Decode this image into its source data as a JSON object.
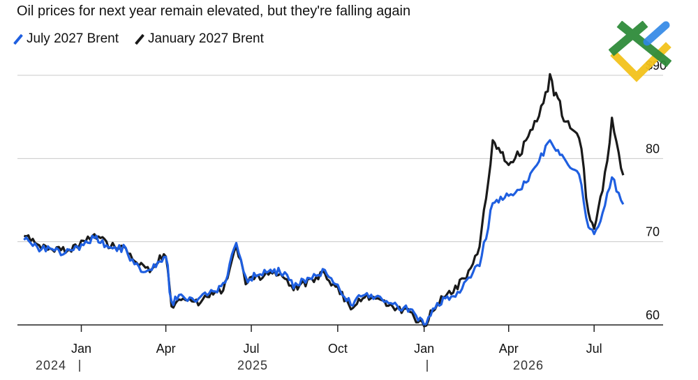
{
  "title": "Oil prices for next year remain elevated, but they're falling again",
  "legend": [
    {
      "label": "July 2027 Brent",
      "color": "#1f5fe0"
    },
    {
      "label": "January 2027 Brent",
      "color": "#1a1a1a"
    }
  ],
  "logo_icon": "watermark-logo-icon",
  "colors": {
    "grid": "#c8c8c8",
    "axis": "#222222",
    "logo_green": "#2e8b3a",
    "logo_blue": "#2f86e6",
    "logo_yellow": "#f2c21b"
  },
  "chart_data": {
    "type": "line",
    "title": "Oil prices for next year remain elevated, but they're falling again",
    "xlabel": "",
    "ylabel": "",
    "ylim": [
      60,
      90
    ],
    "y_unit_prefix": "$",
    "y_ticks": [
      60,
      70,
      80,
      90
    ],
    "x_ticks": [
      "Jan",
      "Apr",
      "Jul",
      "Oct",
      "Jan",
      "Apr",
      "Jul"
    ],
    "x_tick_dates": [
      "2025-01-01",
      "2025-04-01",
      "2025-07-01",
      "2025-10-01",
      "2026-01-01",
      "2026-04-01",
      "2026-07-01"
    ],
    "year_labels": [
      "2024",
      "2025",
      "2026"
    ],
    "grid": "horizontal",
    "legend_position": "top-left",
    "series": [
      {
        "name": "July 2027 Brent",
        "color": "#1f5fe0",
        "points": [
          [
            "2024-11-01",
            70.5
          ],
          [
            "2024-11-15",
            69.3
          ],
          [
            "2024-12-01",
            69.0
          ],
          [
            "2024-12-15",
            68.6
          ],
          [
            "2025-01-01",
            69.5
          ],
          [
            "2025-01-15",
            70.6
          ],
          [
            "2025-02-01",
            69.0
          ],
          [
            "2025-02-15",
            69.2
          ],
          [
            "2025-03-01",
            67.0
          ],
          [
            "2025-03-15",
            66.5
          ],
          [
            "2025-04-01",
            68.5
          ],
          [
            "2025-04-07",
            62.5
          ],
          [
            "2025-04-15",
            63.5
          ],
          [
            "2025-05-01",
            62.8
          ],
          [
            "2025-05-15",
            63.7
          ],
          [
            "2025-06-01",
            64.5
          ],
          [
            "2025-06-15",
            69.5
          ],
          [
            "2025-06-25",
            65.5
          ],
          [
            "2025-07-15",
            66.2
          ],
          [
            "2025-08-01",
            66.5
          ],
          [
            "2025-08-15",
            64.8
          ],
          [
            "2025-09-01",
            65.5
          ],
          [
            "2025-09-15",
            66.5
          ],
          [
            "2025-10-01",
            64.5
          ],
          [
            "2025-10-15",
            62.5
          ],
          [
            "2025-11-01",
            63.8
          ],
          [
            "2025-11-15",
            63.0
          ],
          [
            "2025-12-01",
            62.5
          ],
          [
            "2025-12-15",
            61.8
          ],
          [
            "2026-01-01",
            60.2
          ],
          [
            "2026-01-15",
            62.5
          ],
          [
            "2026-02-01",
            63.5
          ],
          [
            "2026-02-15",
            65.0
          ],
          [
            "2026-03-01",
            67.5
          ],
          [
            "2026-03-15",
            74.5
          ],
          [
            "2026-04-01",
            75.5
          ],
          [
            "2026-04-15",
            76.5
          ],
          [
            "2026-05-01",
            79.0
          ],
          [
            "2026-05-15",
            82.5
          ],
          [
            "2026-06-01",
            79.5
          ],
          [
            "2026-06-15",
            78.0
          ],
          [
            "2026-06-25",
            71.5
          ],
          [
            "2026-07-01",
            71.0
          ],
          [
            "2026-07-10",
            73.5
          ],
          [
            "2026-07-20",
            77.8
          ],
          [
            "2026-08-01",
            74.5
          ]
        ]
      },
      {
        "name": "January 2027 Brent",
        "color": "#1a1a1a",
        "points": [
          [
            "2024-11-01",
            70.7
          ],
          [
            "2024-11-15",
            69.6
          ],
          [
            "2024-12-01",
            69.3
          ],
          [
            "2024-12-15",
            68.9
          ],
          [
            "2025-01-01",
            69.8
          ],
          [
            "2025-01-15",
            71.0
          ],
          [
            "2025-02-01",
            69.4
          ],
          [
            "2025-02-15",
            69.5
          ],
          [
            "2025-03-01",
            67.2
          ],
          [
            "2025-03-15",
            66.7
          ],
          [
            "2025-04-01",
            68.8
          ],
          [
            "2025-04-07",
            62.2
          ],
          [
            "2025-04-15",
            63.3
          ],
          [
            "2025-05-01",
            62.5
          ],
          [
            "2025-05-15",
            63.4
          ],
          [
            "2025-06-01",
            64.2
          ],
          [
            "2025-06-15",
            69.8
          ],
          [
            "2025-06-25",
            65.3
          ],
          [
            "2025-07-15",
            66.0
          ],
          [
            "2025-08-01",
            66.3
          ],
          [
            "2025-08-15",
            64.5
          ],
          [
            "2025-09-01",
            65.2
          ],
          [
            "2025-09-15",
            66.3
          ],
          [
            "2025-10-01",
            64.2
          ],
          [
            "2025-10-15",
            62.2
          ],
          [
            "2025-11-01",
            63.5
          ],
          [
            "2025-11-15",
            62.8
          ],
          [
            "2025-12-01",
            62.2
          ],
          [
            "2025-12-15",
            61.5
          ],
          [
            "2026-01-01",
            59.8
          ],
          [
            "2026-01-15",
            62.8
          ],
          [
            "2026-02-01",
            64.0
          ],
          [
            "2026-02-15",
            66.0
          ],
          [
            "2026-03-01",
            69.0
          ],
          [
            "2026-03-15",
            82.0
          ],
          [
            "2026-04-01",
            79.5
          ],
          [
            "2026-04-15",
            81.0
          ],
          [
            "2026-05-01",
            85.0
          ],
          [
            "2026-05-15",
            89.5
          ],
          [
            "2026-06-01",
            84.5
          ],
          [
            "2026-06-15",
            83.0
          ],
          [
            "2026-06-25",
            73.5
          ],
          [
            "2026-07-01",
            72.0
          ],
          [
            "2026-07-10",
            76.0
          ],
          [
            "2026-07-20",
            84.5
          ],
          [
            "2026-08-01",
            78.0
          ]
        ]
      }
    ]
  }
}
